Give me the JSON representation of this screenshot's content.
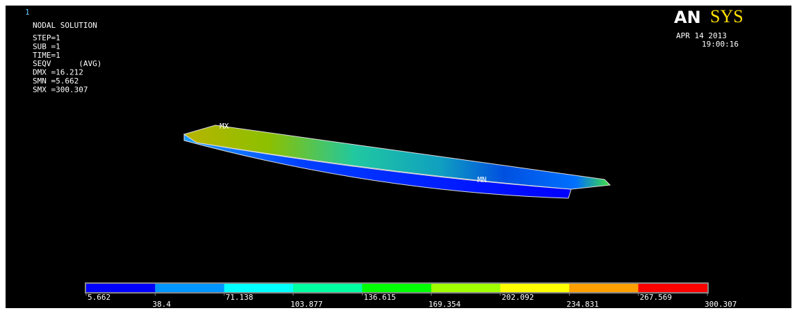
{
  "header": {
    "window": "1",
    "title": "NODAL SOLUTION",
    "lines": [
      "STEP=1",
      "SUB =1",
      "TIME=1",
      "SEQV      (AVG)",
      "DMX =16.212",
      "SMN =5.662",
      "SMX =300.307"
    ]
  },
  "logo": {
    "left": "AN",
    "right": "SYS"
  },
  "date": "APR 14 2013",
  "time": "19:00:16",
  "model": {
    "max_label": "MX",
    "min_label": "MN"
  },
  "legend": {
    "colors": [
      "#0000ff",
      "#0096ff",
      "#00ffff",
      "#00ffa0",
      "#00ff00",
      "#a0ff00",
      "#ffff00",
      "#ffa000",
      "#ff0000"
    ],
    "labels": [
      "5.662",
      "38.4",
      "71.138",
      "103.877",
      "136.615",
      "169.354",
      "202.092",
      "234.831",
      "267.569",
      "300.307"
    ]
  }
}
